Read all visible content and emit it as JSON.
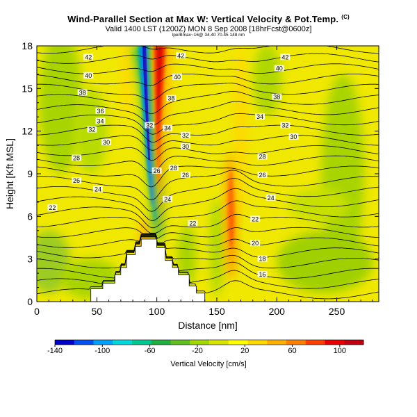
{
  "header": {
    "title": "Wind-Parallel Section at Max W: Vertical Velocity & Pot.Temp.",
    "copyright_mark": "(C)",
    "valid_line": "Valid 1400 LST (1200Z) MON 8 Sep 2008 [18hrFcst@0600z]",
    "location_line": "lpe/Bmax~16@ 34.40 70.45 148 nm"
  },
  "chart_data": {
    "type": "heatmap",
    "xlabel": "Distance [nm]",
    "ylabel": "Height [Kft MSL]",
    "xlim": [
      0,
      285
    ],
    "ylim": [
      0,
      18
    ],
    "x_ticks": [
      "0",
      "50",
      "100",
      "150",
      "200",
      "250"
    ],
    "y_ticks": [
      "0",
      "3",
      "6",
      "9",
      "12",
      "15",
      "18"
    ],
    "colorbar": {
      "label": "Vertical Velocity [cm/s]",
      "ticks": [
        "-140",
        "-100",
        "-60",
        "-20",
        "20",
        "60",
        "100"
      ],
      "range": [
        -140,
        120
      ],
      "colors": [
        "#0000c8",
        "#0050f0",
        "#00a0ff",
        "#00d8e0",
        "#00c890",
        "#20b040",
        "#60c020",
        "#a0d800",
        "#d8e400",
        "#ffff00",
        "#ffd800",
        "#ffb000",
        "#ff8000",
        "#ff4000",
        "#e80000",
        "#c00010"
      ]
    },
    "updraft_core": {
      "x": 103,
      "w_max": 110
    },
    "downdraft_core": {
      "x": 92,
      "w_min": -140
    },
    "secondary_updraft": {
      "x": 162,
      "w_max": 55
    },
    "isentrope_labels": [
      {
        "x": 43,
        "y": 17.2,
        "text": "42"
      },
      {
        "x": 120,
        "y": 17.3,
        "text": "42"
      },
      {
        "x": 207,
        "y": 17.2,
        "text": "42"
      },
      {
        "x": 43,
        "y": 15.9,
        "text": "40"
      },
      {
        "x": 117,
        "y": 15.8,
        "text": "40"
      },
      {
        "x": 202,
        "y": 16.4,
        "text": "40"
      },
      {
        "x": 38,
        "y": 14.7,
        "text": "38"
      },
      {
        "x": 112,
        "y": 14.3,
        "text": "38"
      },
      {
        "x": 200,
        "y": 14.4,
        "text": "38"
      },
      {
        "x": 53,
        "y": 13.4,
        "text": "36"
      },
      {
        "x": 53,
        "y": 12.7,
        "text": "34"
      },
      {
        "x": 109,
        "y": 12.2,
        "text": "34"
      },
      {
        "x": 186,
        "y": 13.0,
        "text": "34"
      },
      {
        "x": 46,
        "y": 12.1,
        "text": "32"
      },
      {
        "x": 124,
        "y": 11.7,
        "text": "32"
      },
      {
        "x": 207,
        "y": 12.4,
        "text": "32"
      },
      {
        "x": 58,
        "y": 11.2,
        "text": "30"
      },
      {
        "x": 124,
        "y": 10.9,
        "text": "30"
      },
      {
        "x": 214,
        "y": 11.6,
        "text": "30"
      },
      {
        "x": 33,
        "y": 10.1,
        "text": "28"
      },
      {
        "x": 114,
        "y": 9.4,
        "text": "28"
      },
      {
        "x": 188,
        "y": 10.2,
        "text": "28"
      },
      {
        "x": 33,
        "y": 8.5,
        "text": "26"
      },
      {
        "x": 124,
        "y": 8.9,
        "text": "26"
      },
      {
        "x": 188,
        "y": 8.9,
        "text": "26"
      },
      {
        "x": 51,
        "y": 7.9,
        "text": "24"
      },
      {
        "x": 109,
        "y": 7.2,
        "text": "24"
      },
      {
        "x": 195,
        "y": 7.3,
        "text": "24"
      },
      {
        "x": 13,
        "y": 6.6,
        "text": "22"
      },
      {
        "x": 130,
        "y": 5.5,
        "text": "22"
      },
      {
        "x": 182,
        "y": 5.8,
        "text": "22"
      },
      {
        "x": 182,
        "y": 4.1,
        "text": "20"
      },
      {
        "x": 188,
        "y": 3.0,
        "text": "18"
      },
      {
        "x": 188,
        "y": 1.9,
        "text": "16"
      },
      {
        "x": 94,
        "y": 12.4,
        "text": "32"
      },
      {
        "x": 100,
        "y": 9.2,
        "text": "26"
      }
    ],
    "terrain": [
      [
        0,
        0
      ],
      [
        45,
        0
      ],
      [
        45,
        0.9
      ],
      [
        55,
        0.9
      ],
      [
        55,
        1.3
      ],
      [
        65,
        1.3
      ],
      [
        65,
        1.9
      ],
      [
        70,
        1.9
      ],
      [
        70,
        2.4
      ],
      [
        75,
        2.4
      ],
      [
        75,
        3.3
      ],
      [
        82,
        3.3
      ],
      [
        82,
        3.9
      ],
      [
        87,
        3.9
      ],
      [
        87,
        4.4
      ],
      [
        100,
        4.4
      ],
      [
        100,
        3.8
      ],
      [
        107,
        3.8
      ],
      [
        107,
        2.9
      ],
      [
        113,
        2.9
      ],
      [
        113,
        2.4
      ],
      [
        118,
        2.4
      ],
      [
        118,
        1.9
      ],
      [
        127,
        1.9
      ],
      [
        127,
        1.1
      ],
      [
        133,
        1.1
      ],
      [
        133,
        0.6
      ],
      [
        140,
        0.6
      ],
      [
        140,
        0
      ],
      [
        285,
        0
      ]
    ]
  }
}
